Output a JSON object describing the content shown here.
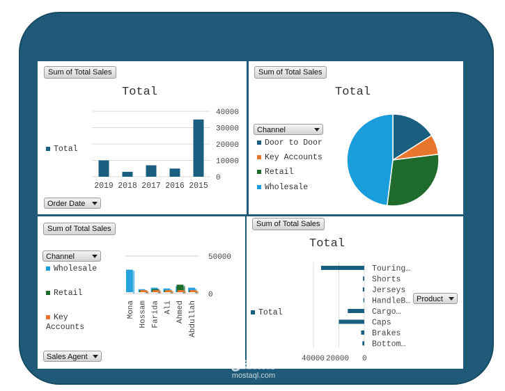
{
  "panels": {
    "top_left": {
      "field_button": "Sum of Total Sales",
      "title": "Total",
      "legend": "Total",
      "filter_button": "Order Date"
    },
    "top_right": {
      "field_button": "Sum of Total Sales",
      "title": "Total",
      "filter_button": "Channel",
      "legend": [
        "Door to Door",
        "Key Accounts",
        "Retail",
        "Wholesale"
      ]
    },
    "bottom_left": {
      "field_button": "Sum of Total Sales",
      "filter_button": "Channel",
      "legend": [
        "Wholesale",
        "Retail",
        "Key Accounts"
      ],
      "bottom_button": "Sales Agent"
    },
    "bottom_right": {
      "field_button": "Sum of Total Sales",
      "title": "Total",
      "legend": "Total",
      "filter_button": "Product"
    }
  },
  "watermark": {
    "arabic": "مستقل",
    "latin": "mostaql.com"
  },
  "colors": {
    "frame": "#1f5b79",
    "total": "#1a5e80",
    "door_to_door": "#1a5e80",
    "key_accounts": "#e8762d",
    "retail": "#1e6b2c",
    "wholesale": "#1a9edb"
  },
  "chart_data": [
    {
      "type": "bar",
      "title": "Total",
      "categories": [
        "2019",
        "2018",
        "2017",
        "2016",
        "2015"
      ],
      "series": [
        {
          "name": "Total",
          "values": [
            10000,
            3000,
            7000,
            5000,
            35000
          ]
        }
      ],
      "ylim": [
        0,
        40000
      ],
      "yticks": [
        "40000",
        "30000",
        "20000",
        "10000",
        "0"
      ],
      "grid": true,
      "legend": "left"
    },
    {
      "type": "pie",
      "title": "Total",
      "categories": [
        "Door to Door",
        "Key Accounts",
        "Retail",
        "Wholesale"
      ],
      "values": [
        16,
        7,
        29,
        48
      ],
      "legend": "left"
    },
    {
      "type": "bar",
      "categories": [
        "Mona",
        "Hossam",
        "Farida",
        "Ali",
        "Ahmed",
        "Abdullah"
      ],
      "series": [
        {
          "name": "Wholesale",
          "values": [
            30000,
            4000,
            6000,
            5000,
            8000,
            6000
          ]
        },
        {
          "name": "Retail",
          "values": [
            0,
            1000,
            4000,
            1500,
            10000,
            1500
          ]
        },
        {
          "name": "Key Accounts",
          "values": [
            0,
            1000,
            2000,
            500,
            1500,
            500
          ]
        }
      ],
      "yticks": [
        "50000",
        "0"
      ],
      "ylim": [
        0,
        50000
      ],
      "legend": "left"
    },
    {
      "type": "bar",
      "orientation": "horizontal",
      "title": "Total",
      "categories": [
        "Touring…",
        "Shorts",
        "Jerseys",
        "HandleB…",
        "Cargo…",
        "Caps",
        "Brakes",
        "Bottom…"
      ],
      "series": [
        {
          "name": "Total",
          "values": [
            34000,
            1000,
            1200,
            700,
            13000,
            20000,
            2500,
            1500
          ]
        }
      ],
      "xticks": [
        "40000",
        "20000",
        "0"
      ],
      "xlim": [
        0,
        60000
      ],
      "reversed": true,
      "grid": true,
      "legend": "left"
    }
  ]
}
